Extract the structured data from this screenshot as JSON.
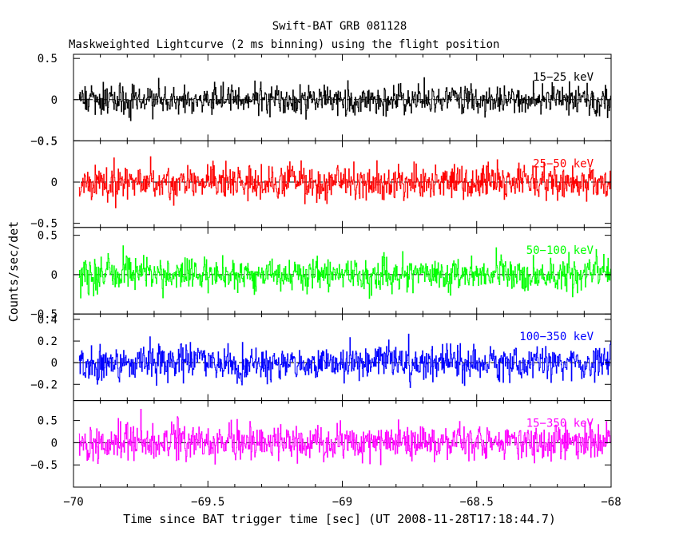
{
  "chart_data": {
    "type": "line",
    "title": "Swift-BAT GRB 081128",
    "subtitle": "Maskweighted Lightcurve (2 ms binning) using the flight position",
    "xlabel": "Time since BAT trigger time [sec] (UT 2008-11-28T17:18:44.7)",
    "ylabel": "Counts/sec/det",
    "xlim": [
      -70,
      -68
    ],
    "x_ticks": [
      -70,
      -69.5,
      -69,
      -68.5,
      -68
    ],
    "x_tick_labels": [
      "−70",
      "−69.5",
      "−69",
      "−68.5",
      "−68"
    ],
    "x_range_data": [
      -69.98,
      -68.0
    ],
    "bin_width_sec": 0.002,
    "grid": false,
    "legend": "none",
    "panels": [
      {
        "name": "15-25 keV",
        "label": "15−25 keV",
        "color": "#000000",
        "ylim": [
          -0.5,
          0.55
        ],
        "y_ticks": [
          -0.5,
          0,
          0.5
        ],
        "y_tick_labels": [
          "−0.5",
          "0",
          "0.5"
        ],
        "noise_sigma": 0.1,
        "noise_peak": 0.45
      },
      {
        "name": "25-50 keV",
        "label": "25−50 keV",
        "color": "#ff0000",
        "ylim": [
          -0.55,
          0.5
        ],
        "y_ticks": [
          -0.5,
          0,
          0.5
        ],
        "y_tick_labels": [
          "−0.5",
          "0",
          "0.5"
        ],
        "noise_sigma": 0.12,
        "noise_peak": 0.5
      },
      {
        "name": "50-100 keV",
        "label": "50−100 keV",
        "color": "#00ff00",
        "ylim": [
          -0.5,
          0.6
        ],
        "y_ticks": [
          -0.5,
          0,
          0.5
        ],
        "y_tick_labels": [
          "−0.5",
          "0",
          "0.5"
        ],
        "noise_sigma": 0.12,
        "noise_peak": 0.55
      },
      {
        "name": "100-350 keV",
        "label": "100−350 keV",
        "color": "#0000ff",
        "ylim": [
          -0.35,
          0.45
        ],
        "y_ticks": [
          -0.2,
          0,
          0.2,
          0.4
        ],
        "y_tick_labels": [
          "−0.2",
          "0",
          "0.2",
          "0.4"
        ],
        "noise_sigma": 0.09,
        "noise_peak": 0.4
      },
      {
        "name": "15-350 keV",
        "label": "15−350 keV",
        "color": "#ff00ff",
        "ylim": [
          -1.0,
          0.95
        ],
        "y_ticks": [
          -0.5,
          0,
          0.5
        ],
        "y_tick_labels": [
          "−0.5",
          "0",
          "0.5"
        ],
        "noise_sigma": 0.22,
        "noise_peak": 0.9
      }
    ]
  }
}
